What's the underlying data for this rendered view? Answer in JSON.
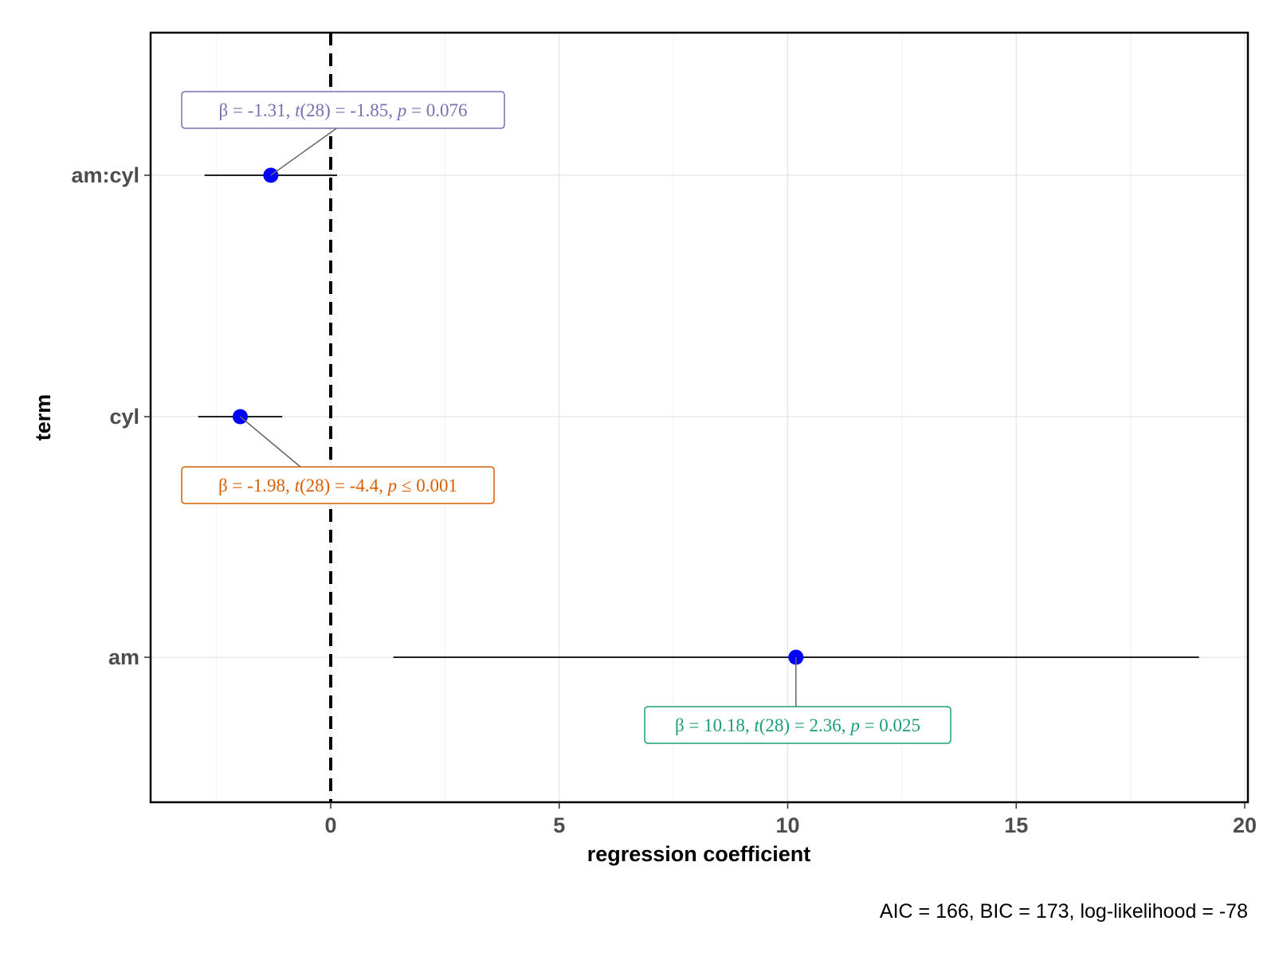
{
  "chart_data": {
    "type": "dot-whisker",
    "xlabel": "regression coefficient",
    "ylabel": "term",
    "caption": "AIC = 166, BIC = 173, log-likelihood = -78",
    "xlim": [
      -4,
      20
    ],
    "x_ticks": [
      0,
      5,
      10,
      15,
      20
    ],
    "reference_line": 0,
    "terms": [
      {
        "term": "am:cyl",
        "estimate": -1.31,
        "ci": [
          -2.76,
          0.14
        ],
        "label": {
          "beta": "-1.31",
          "t": "-1.85",
          "p_op": "=",
          "p": "0.076"
        },
        "color": "#7570b3"
      },
      {
        "term": "cyl",
        "estimate": -1.98,
        "ci": [
          -2.9,
          -1.06
        ],
        "label": {
          "beta": "-1.98",
          "t": "-4.4",
          "p_op": "≤",
          "p": "0.001"
        },
        "color": "#d95f02"
      },
      {
        "term": "am",
        "estimate": 10.18,
        "ci": [
          1.37,
          19.0
        ],
        "label": {
          "beta": "10.18",
          "t": "2.36",
          "p_op": "=",
          "p": "0.025"
        },
        "color": "#1b9e77"
      }
    ],
    "df": "28",
    "point_color": "#0000ff",
    "grid": true
  }
}
